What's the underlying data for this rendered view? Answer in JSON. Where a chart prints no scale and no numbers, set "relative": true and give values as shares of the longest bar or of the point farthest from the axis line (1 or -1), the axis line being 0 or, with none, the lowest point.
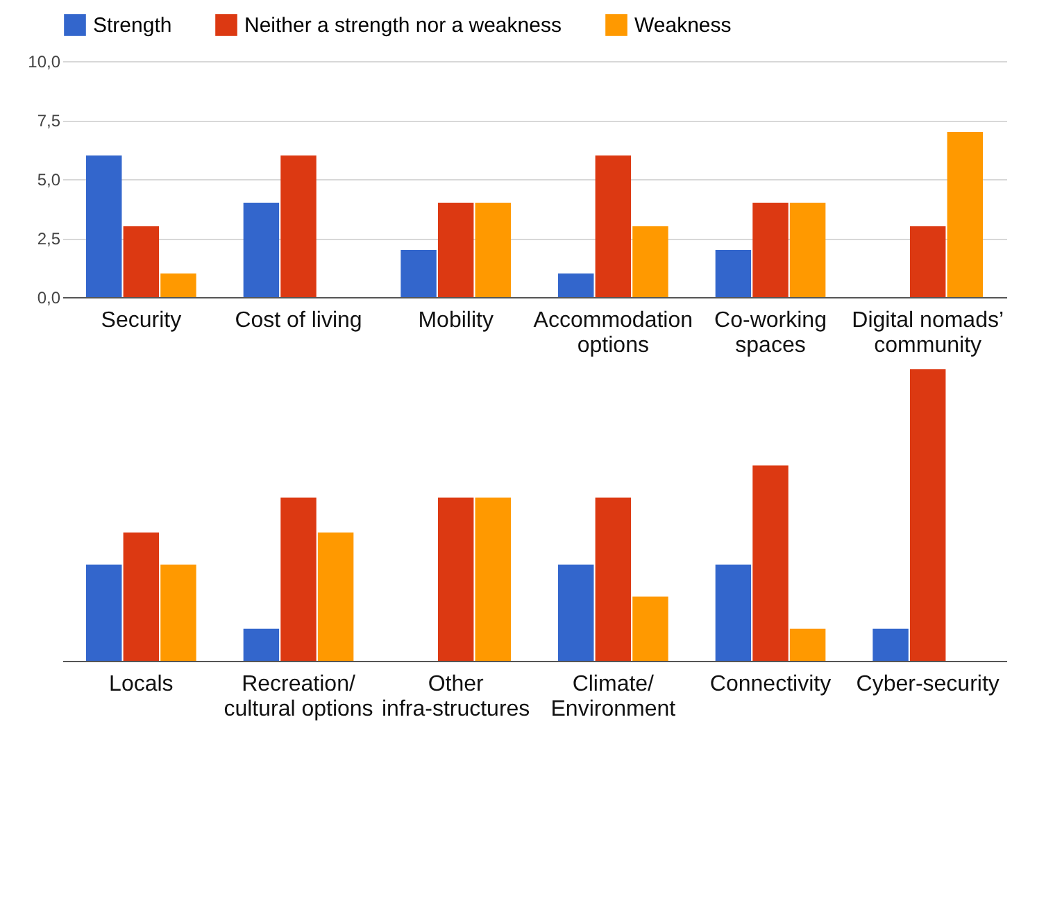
{
  "chart_data": [
    {
      "type": "bar",
      "categories": [
        "Security",
        "Cost of living",
        "Mobility",
        "Accommodation options",
        "Co-working spaces",
        "Digital nomads’ community"
      ],
      "series": [
        {
          "name": "Strength",
          "color": "#3366cc",
          "values": [
            6,
            4,
            2,
            1,
            2,
            0
          ]
        },
        {
          "name": "Neither a strength nor a weakness",
          "color": "#dc3912",
          "values": [
            3,
            6,
            4,
            6,
            4,
            3
          ]
        },
        {
          "name": "Weakness",
          "color": "#ff9900",
          "values": [
            1,
            0,
            4,
            3,
            4,
            7
          ]
        }
      ],
      "ylim": [
        0,
        10
      ],
      "yticks": [
        {
          "value": 0,
          "label": "0,0"
        },
        {
          "value": 2.5,
          "label": "2,5"
        },
        {
          "value": 5,
          "label": "5,0"
        },
        {
          "value": 7.5,
          "label": "7,5"
        },
        {
          "value": 10,
          "label": "10,0"
        }
      ],
      "grid": "y",
      "legend": "top"
    },
    {
      "type": "bar",
      "categories": [
        "Locals",
        "Recreation/ cultural options",
        "Other infra-structures",
        "Climate/ Environment",
        "Connectivity",
        "Cyber-security"
      ],
      "series": [
        {
          "color": "#3366cc",
          "values": [
            0.33,
            0.11,
            0,
            0.33,
            0.33,
            0.11
          ]
        },
        {
          "color": "#dc3912",
          "values": [
            0.44,
            0.56,
            0.56,
            0.56,
            0.67,
            1
          ]
        },
        {
          "color": "#ff9900",
          "values": [
            0.33,
            0.44,
            0.56,
            0.22,
            0.11,
            0
          ]
        }
      ],
      "relative": true
    }
  ]
}
